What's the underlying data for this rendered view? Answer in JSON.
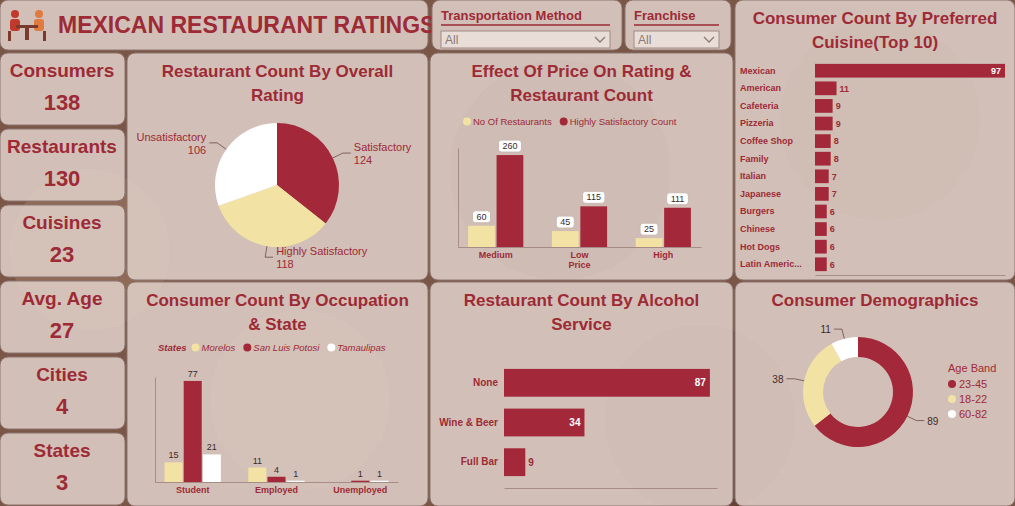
{
  "header": {
    "title": "MEXICAN RESTAURANT RATINGS"
  },
  "filters": [
    {
      "label": "Transportation Method",
      "value": "All"
    },
    {
      "label": "Franchise",
      "value": "All"
    }
  ],
  "kpis": [
    {
      "label": "Consumers",
      "value": 138
    },
    {
      "label": "Restaurants",
      "value": 130
    },
    {
      "label": "Cuisines",
      "value": 23
    },
    {
      "label": "Avg. Age",
      "value": 27
    },
    {
      "label": "Cities",
      "value": 4
    },
    {
      "label": "States",
      "value": 3
    }
  ],
  "chart_data": [
    {
      "type": "pie",
      "title": "Restaurant Count By Overall Rating",
      "categories": [
        "Satisfactory",
        "Highly Satisfactory",
        "Unsatisfactory"
      ],
      "values": [
        124,
        118,
        106
      ],
      "colors": [
        "#a3283a",
        "#f2e3a4",
        "#ffffff"
      ],
      "data_labels": true
    },
    {
      "type": "bar",
      "title": "Effect Of Price On Rating & Restaurant Count",
      "x_label": "Price",
      "categories": [
        "Medium",
        "Low",
        "High"
      ],
      "series": [
        {
          "name": "No Of Restaurants",
          "color": "#f2e3a4",
          "values": [
            60,
            45,
            25
          ]
        },
        {
          "name": "Highly Satisfactory Count",
          "color": "#a3283a",
          "values": [
            260,
            115,
            111
          ]
        }
      ],
      "ylim": [
        0,
        280
      ],
      "legend": "top-left",
      "data_labels": true,
      "tick_labels": "x"
    },
    {
      "type": "bar",
      "orientation": "horizontal",
      "title": "Consumer Count By Preferred Cuisine(Top 10)",
      "categories": [
        "Mexican",
        "American",
        "Cafeteria",
        "Pizzeria",
        "Coffee Shop",
        "Family",
        "Italian",
        "Japanese",
        "Burgers",
        "Chinese",
        "Hot Dogs",
        "Latin Americ..."
      ],
      "values": [
        97,
        11,
        9,
        9,
        8,
        8,
        7,
        7,
        6,
        6,
        6,
        6
      ],
      "color": "#a3283a",
      "xlim": [
        0,
        97
      ],
      "data_labels": true,
      "tick_labels": "y"
    },
    {
      "type": "bar",
      "title": "Consumer Count By Occupation & State",
      "legend_title": "States",
      "categories": [
        "Student",
        "Employed",
        "Unemployed"
      ],
      "series": [
        {
          "name": "Morelos",
          "color": "#f2e3a4",
          "values": [
            15,
            11,
            null
          ]
        },
        {
          "name": "San Luis Potosi",
          "color": "#a3283a",
          "values": [
            77,
            4,
            1
          ]
        },
        {
          "name": "Tamaulipas",
          "color": "#ffffff",
          "values": [
            21,
            1,
            1
          ]
        }
      ],
      "ylim": [
        0,
        80
      ],
      "legend": "top-left",
      "data_labels": true,
      "tick_labels": "x"
    },
    {
      "type": "bar",
      "orientation": "horizontal",
      "title": "Restaurant Count By Alcohol Service",
      "categories": [
        "None",
        "Wine & Beer",
        "Full Bar"
      ],
      "values": [
        87,
        34,
        9
      ],
      "color": "#a3283a",
      "xlim": [
        0,
        90
      ],
      "data_labels": true,
      "tick_labels": "y"
    },
    {
      "type": "donut",
      "title": "Consumer Demographics",
      "legend_title": "Age Band",
      "categories": [
        "23-45",
        "18-22",
        "60-82"
      ],
      "values": [
        89,
        38,
        11
      ],
      "colors": [
        "#a3283a",
        "#f2e3a4",
        "#ffffff"
      ],
      "legend": "right",
      "data_labels": true
    }
  ]
}
